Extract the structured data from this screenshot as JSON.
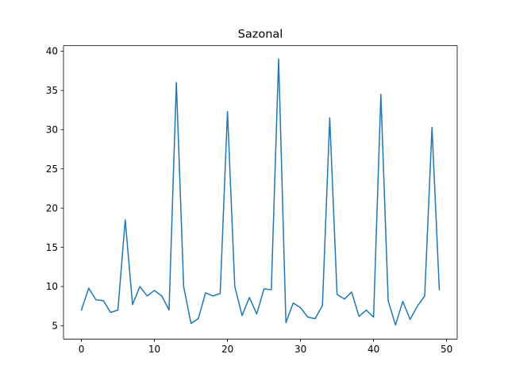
{
  "chart_data": {
    "type": "line",
    "title": "Sazonal",
    "xlabel": "",
    "ylabel": "",
    "xlim": [
      -2.45,
      51.45
    ],
    "ylim": [
      3.3,
      40.7
    ],
    "xticks": [
      0,
      10,
      20,
      30,
      40,
      50
    ],
    "yticks": [
      5,
      10,
      15,
      20,
      25,
      30,
      35,
      40
    ],
    "grid": false,
    "line_color": "#1f77b4",
    "series": [
      {
        "x": [
          0,
          1,
          2,
          3,
          4,
          5,
          6,
          7,
          8,
          9,
          10,
          11,
          12,
          13,
          14,
          15,
          16,
          17,
          18,
          19,
          20,
          21,
          22,
          23,
          24,
          25,
          26,
          27,
          28,
          29,
          30,
          31,
          32,
          33,
          34,
          35,
          36,
          37,
          38,
          39,
          40,
          41,
          42,
          43,
          44,
          45,
          46,
          47,
          48,
          49
        ],
        "values": [
          7.0,
          9.8,
          8.3,
          8.2,
          6.7,
          7.0,
          18.5,
          7.7,
          10.0,
          8.8,
          9.5,
          8.8,
          7.0,
          36.0,
          10.0,
          5.3,
          5.9,
          9.2,
          8.8,
          9.1,
          32.3,
          10.0,
          6.3,
          8.6,
          6.5,
          9.7,
          9.6,
          39.0,
          5.4,
          7.9,
          7.3,
          6.1,
          5.9,
          7.6,
          31.5,
          9.0,
          8.4,
          9.3,
          6.2,
          7.0,
          6.1,
          34.5,
          8.2,
          5.1,
          8.1,
          5.8,
          7.5,
          8.8,
          30.3,
          9.6
        ]
      }
    ]
  }
}
